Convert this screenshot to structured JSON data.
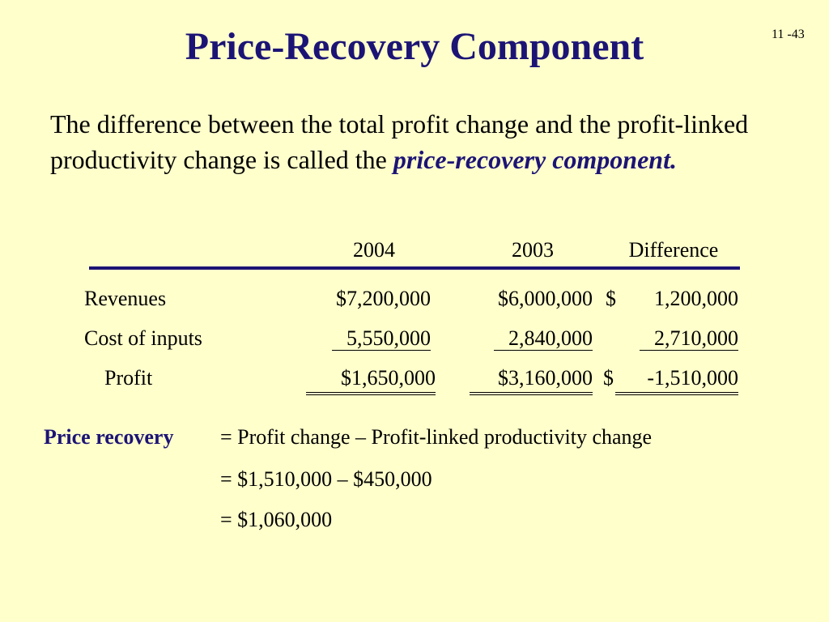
{
  "slide_number": "11 -43",
  "title": "Price-Recovery Component",
  "intro": {
    "text_before": "The difference between the total profit change and the profit-linked productivity change is called the",
    "term": "price-recovery component",
    "period": "."
  },
  "table": {
    "columns": [
      "2004",
      "2003",
      "Difference"
    ],
    "rows": [
      {
        "label": "Revenues",
        "v2004": "$7,200,000",
        "v2003": "$6,000,000",
        "diff_prefix": "$",
        "diff": "1,200,000"
      },
      {
        "label": "Cost of inputs",
        "v2004": "5,550,000",
        "v2003": "2,840,000",
        "diff_prefix": "",
        "diff": "2,710,000"
      },
      {
        "label": "Profit",
        "v2004": "$1,650,000",
        "v2003": "$3,160,000",
        "diff_prefix": "$",
        "diff": "-1,510,000"
      }
    ]
  },
  "formula": {
    "label": "Price recovery",
    "lines": [
      "= Profit change – Profit-linked productivity change",
      "= $1,510,000 – $450,000",
      "= $1,060,000"
    ]
  },
  "colors": {
    "background": "#FFFFCC",
    "accent": "#1C1475"
  }
}
